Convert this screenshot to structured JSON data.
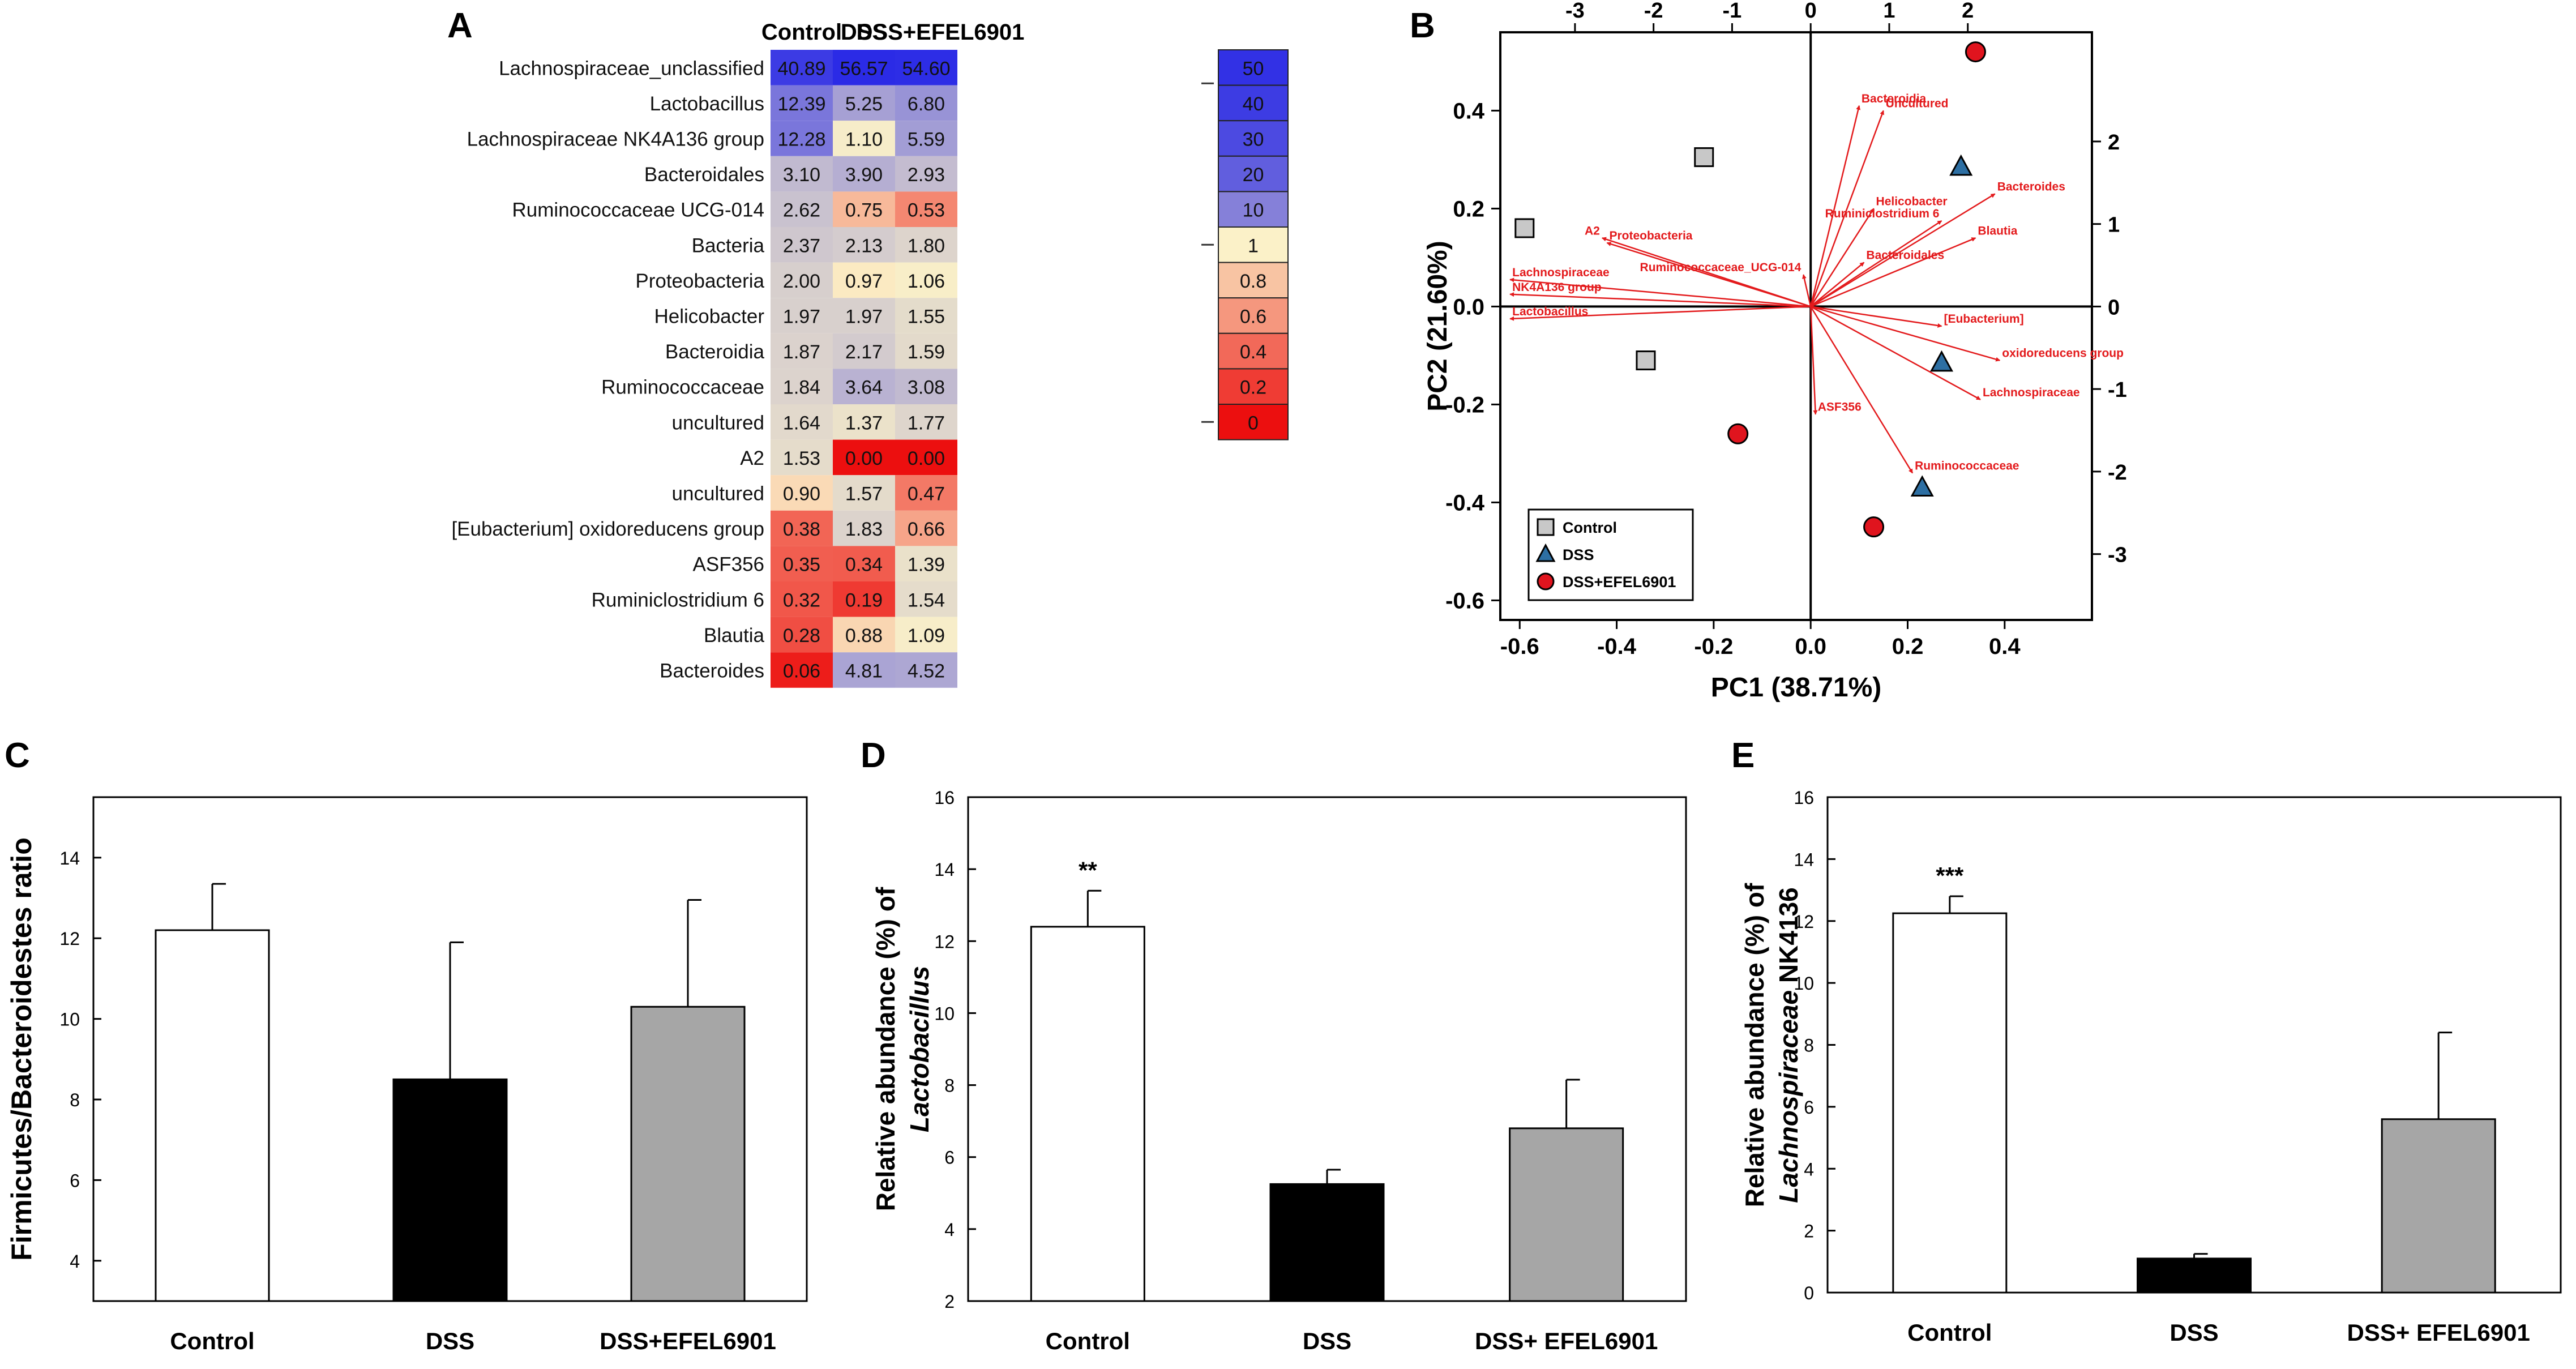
{
  "chart_data": [
    {
      "panel": "A",
      "type": "heatmap",
      "columns": [
        "Control",
        "DSS",
        "DSS+EFEL6901"
      ],
      "rows": [
        "Lachnospiraceae_unclassified",
        "Lactobacillus",
        "Lachnospiraceae NK4A136 group",
        "Bacteroidales",
        "Ruminococcaceae UCG-014",
        "Bacteria",
        "Proteobacteria",
        "Helicobacter",
        "Bacteroidia",
        "Ruminococcaceae",
        "uncultured",
        "A2",
        "uncultured",
        "[Eubacterium] oxidoreducens group",
        "ASF356",
        "Ruminiclostridium 6",
        "Blautia",
        "Bacteroides"
      ],
      "cells": [
        [
          "40.89",
          "56.57",
          "54.60"
        ],
        [
          "12.39",
          "5.25",
          "6.80"
        ],
        [
          "12.28",
          "1.10",
          "5.59"
        ],
        [
          "3.10",
          "3.90",
          "2.93"
        ],
        [
          "2.62",
          "0.75",
          "0.53"
        ],
        [
          "2.37",
          "2.13",
          "1.80"
        ],
        [
          "2.00",
          "0.97",
          "1.06"
        ],
        [
          "1.97",
          "1.97",
          "1.55"
        ],
        [
          "1.87",
          "2.17",
          "1.59"
        ],
        [
          "1.84",
          "3.64",
          "3.08"
        ],
        [
          "1.64",
          "1.37",
          "1.77"
        ],
        [
          "1.53",
          "0.00",
          "0.00"
        ],
        [
          "0.90",
          "1.57",
          "0.47"
        ],
        [
          "0.38",
          "1.83",
          "0.66"
        ],
        [
          "0.35",
          "0.34",
          "1.39"
        ],
        [
          "0.32",
          "0.19",
          "1.54"
        ],
        [
          "0.28",
          "0.88",
          "1.09"
        ],
        [
          "0.06",
          "4.81",
          "4.52"
        ]
      ],
      "scale_labels": [
        "50",
        "40",
        "30",
        "20",
        "10",
        "1",
        "0.8",
        "0.6",
        "0.4",
        "0.2",
        "0"
      ],
      "colors": {
        "high": "#2b2be6",
        "mid": "#fbf1c8",
        "low": "#ec0f0f"
      }
    },
    {
      "panel": "B",
      "type": "scatter",
      "subtype": "pca-biplot",
      "xlabel": "PC1 (38.71%)",
      "ylabel": "PC2 (21.60%)",
      "xlim": [
        -0.64,
        0.58
      ],
      "ylim": [
        -0.64,
        0.56
      ],
      "xticks": [
        "-0.6",
        "-0.4",
        "-0.2",
        "0.0",
        "0.2",
        "0.4"
      ],
      "yticks": [
        "0.4",
        "0.2",
        "0.0",
        "-0.2",
        "-0.4",
        "-0.6"
      ],
      "top_ticks": [
        "-3",
        "-2",
        "-1",
        "0",
        "1",
        "2"
      ],
      "right_ticks": [
        "2",
        "1",
        "0",
        "-1",
        "-2",
        "-3"
      ],
      "series": [
        {
          "name": "Control",
          "marker": "square",
          "color": "#c8c8c8",
          "points": [
            [
              -0.59,
              0.16
            ],
            [
              -0.22,
              0.305
            ],
            [
              -0.34,
              -0.11
            ]
          ]
        },
        {
          "name": "DSS",
          "marker": "triangle",
          "color": "#2d6fa3",
          "points": [
            [
              0.31,
              0.285
            ],
            [
              0.27,
              -0.115
            ],
            [
              0.23,
              -0.37
            ]
          ]
        },
        {
          "name": "DSS+EFEL6901",
          "marker": "circle",
          "color": "#e0141e",
          "points": [
            [
              0.34,
              0.52
            ],
            [
              -0.15,
              -0.26
            ],
            [
              0.13,
              -0.45
            ]
          ]
        }
      ],
      "vectors": [
        {
          "label": "Bacteroidia",
          "x": 0.1,
          "y": 0.41,
          "anchor": "start"
        },
        {
          "label": "Uncultured",
          "x": 0.15,
          "y": 0.4,
          "anchor": "start"
        },
        {
          "label": "Bacteroides",
          "x": 0.38,
          "y": 0.23,
          "anchor": "start"
        },
        {
          "label": "Helicobacter",
          "x": 0.13,
          "y": 0.2,
          "anchor": "start"
        },
        {
          "label": "Ruminiclostridium 6",
          "x": 0.27,
          "y": 0.175,
          "anchor": "end"
        },
        {
          "label": "Blautia",
          "x": 0.34,
          "y": 0.14,
          "anchor": "start"
        },
        {
          "label": "Bacteroidales",
          "x": 0.11,
          "y": 0.09,
          "anchor": "start"
        },
        {
          "label": "Proteobacteria",
          "x": -0.42,
          "y": 0.13,
          "anchor": "start"
        },
        {
          "label": "A2",
          "x": -0.43,
          "y": 0.14,
          "anchor": "end"
        },
        {
          "label": "Ruminococcaceae_UCG-014",
          "x": -0.015,
          "y": 0.065,
          "anchor": "end"
        },
        {
          "label": "Lachnospiraceae",
          "x": -0.62,
          "y": 0.055,
          "anchor": "start"
        },
        {
          "label": "NK4A136 group",
          "x": -0.62,
          "y": 0.025,
          "anchor": "start"
        },
        {
          "label": "Lactobacillus",
          "x": -0.62,
          "y": -0.025,
          "anchor": "start"
        },
        {
          "label": "[Eubacterium]",
          "x": 0.27,
          "y": -0.04,
          "anchor": "start"
        },
        {
          "label": "oxidoreducens group",
          "x": 0.39,
          "y": -0.11,
          "anchor": "start"
        },
        {
          "label": "Lachnospiraceae",
          "x": 0.35,
          "y": -0.19,
          "anchor": "start"
        },
        {
          "label": "ASF356",
          "x": 0.01,
          "y": -0.22,
          "anchor": "start"
        },
        {
          "label": "Ruminococcaceae",
          "x": 0.21,
          "y": -0.34,
          "anchor": "start"
        }
      ],
      "legend": [
        "Control",
        "DSS",
        "DSS+EFEL6901"
      ]
    },
    {
      "panel": "C",
      "type": "bar",
      "categories": [
        "Control",
        "DSS",
        "DSS+EFEL6901"
      ],
      "values": [
        12.2,
        8.5,
        10.3
      ],
      "errors": [
        1.15,
        3.4,
        2.65
      ],
      "colors": [
        "#ffffff",
        "#000000",
        "#a6a6a6"
      ],
      "ylabel": "Firmicutes/Bacteroidestes ratio",
      "ylim": [
        3,
        15.5
      ],
      "yticks": [
        "4",
        "6",
        "8",
        "10",
        "12",
        "14"
      ],
      "annotations": [
        "",
        "",
        ""
      ]
    },
    {
      "panel": "D",
      "type": "bar",
      "categories": [
        "Control",
        "DSS",
        "DSS+ EFEL6901"
      ],
      "values": [
        12.4,
        5.25,
        6.8
      ],
      "errors": [
        1.0,
        0.4,
        1.35
      ],
      "colors": [
        "#ffffff",
        "#000000",
        "#a6a6a6"
      ],
      "ylabel_line1": "Relative abundance (%) of",
      "ylabel_line2_plain": "",
      "ylabel_line2_italic": "Lactobacillus",
      "ylim": [
        2,
        16
      ],
      "yticks": [
        "2",
        "4",
        "6",
        "8",
        "10",
        "12",
        "14",
        "16"
      ],
      "annotations": [
        "**",
        "",
        ""
      ]
    },
    {
      "panel": "E",
      "type": "bar",
      "categories": [
        "Control",
        "DSS",
        "DSS+ EFEL6901"
      ],
      "values": [
        12.25,
        1.1,
        5.6
      ],
      "errors": [
        0.55,
        0.15,
        2.8
      ],
      "colors": [
        "#ffffff",
        "#000000",
        "#a6a6a6"
      ],
      "ylabel_line1": "Relative abundance (%) of",
      "ylabel_line2_italic": "Lachnospiraceae",
      "ylabel_line2_plain": " NK4136",
      "ylim": [
        0,
        16
      ],
      "yticks": [
        "0",
        "2",
        "4",
        "6",
        "8",
        "10",
        "12",
        "14",
        "16"
      ],
      "annotations": [
        "***",
        "",
        ""
      ]
    }
  ],
  "panel_letters": {
    "a": "A",
    "b": "B",
    "c": "C",
    "d": "D",
    "e": "E"
  }
}
